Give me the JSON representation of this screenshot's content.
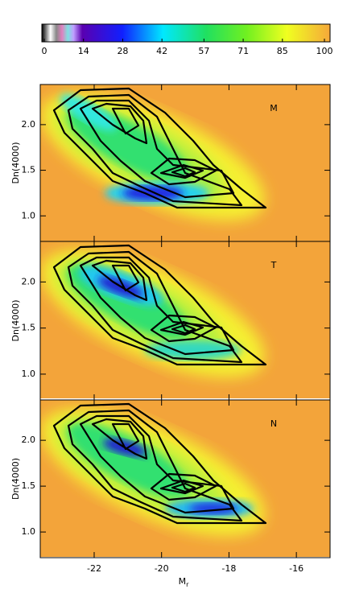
{
  "chart_data": [
    {
      "type": "colorbar",
      "xlim": [
        0,
        100
      ],
      "xticks": [
        0,
        14,
        28,
        42,
        57,
        71,
        85,
        100
      ]
    },
    {
      "type": "contour",
      "label": "M",
      "y_label": "Dn(4000)",
      "xlim": [
        -23.6,
        -15.0
      ],
      "ylim": [
        0.72,
        2.44
      ],
      "xticks": [
        -22,
        -20,
        -18,
        -16
      ],
      "yticks": [
        {
          "value": 1,
          "label": "1.0"
        },
        {
          "value": 1.5,
          "label": "1.5"
        },
        {
          "value": 2,
          "label": "2.0"
        }
      ]
    },
    {
      "type": "contour",
      "label": "T",
      "y_label": "Dn(4000)",
      "xlim": [
        -23.6,
        -15.0
      ],
      "ylim": [
        0.72,
        2.44
      ],
      "xticks": [
        -22,
        -20,
        -18,
        -16
      ],
      "yticks": [
        {
          "value": 1,
          "label": "1.0"
        },
        {
          "value": 1.5,
          "label": "1.5"
        },
        {
          "value": 2,
          "label": "2.0"
        }
      ]
    },
    {
      "type": "contour",
      "label": "N",
      "y_label": "Dn(4000)",
      "x_label": "M",
      "x_label_sub": "r",
      "xlim": [
        -23.6,
        -15.0
      ],
      "ylim": [
        0.72,
        2.44
      ],
      "xticks": [
        -22,
        -20,
        -18,
        -16
      ],
      "yticks": [
        {
          "value": 1,
          "label": "1.0"
        },
        {
          "value": 1.5,
          "label": "1.5"
        },
        {
          "value": 2,
          "label": "2.0"
        }
      ]
    }
  ]
}
